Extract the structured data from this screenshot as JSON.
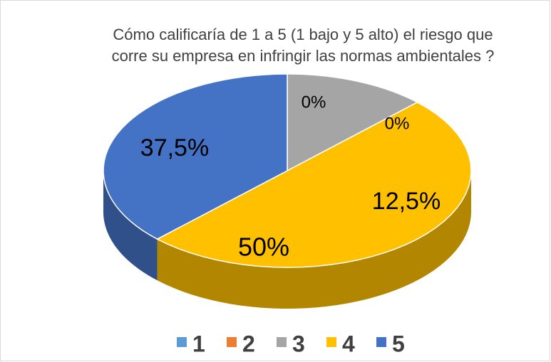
{
  "chart_data": {
    "type": "pie",
    "title": [
      "Cómo calificaría de 1 a 5 (1 bajo y 5 alto) el riesgo que",
      "corre su empresa en infringir las normas ambientales ?"
    ],
    "categories": [
      "1",
      "2",
      "3",
      "4",
      "5"
    ],
    "values": [
      0,
      0,
      12.5,
      50,
      37.5
    ],
    "value_labels": [
      "0%",
      "0%",
      "12,5%",
      "50%",
      "37,5%"
    ],
    "colors": [
      "#5b9bd5",
      "#ed7d31",
      "#a5a5a5",
      "#ffc000",
      "#4472c4"
    ],
    "legend": "bottom"
  }
}
